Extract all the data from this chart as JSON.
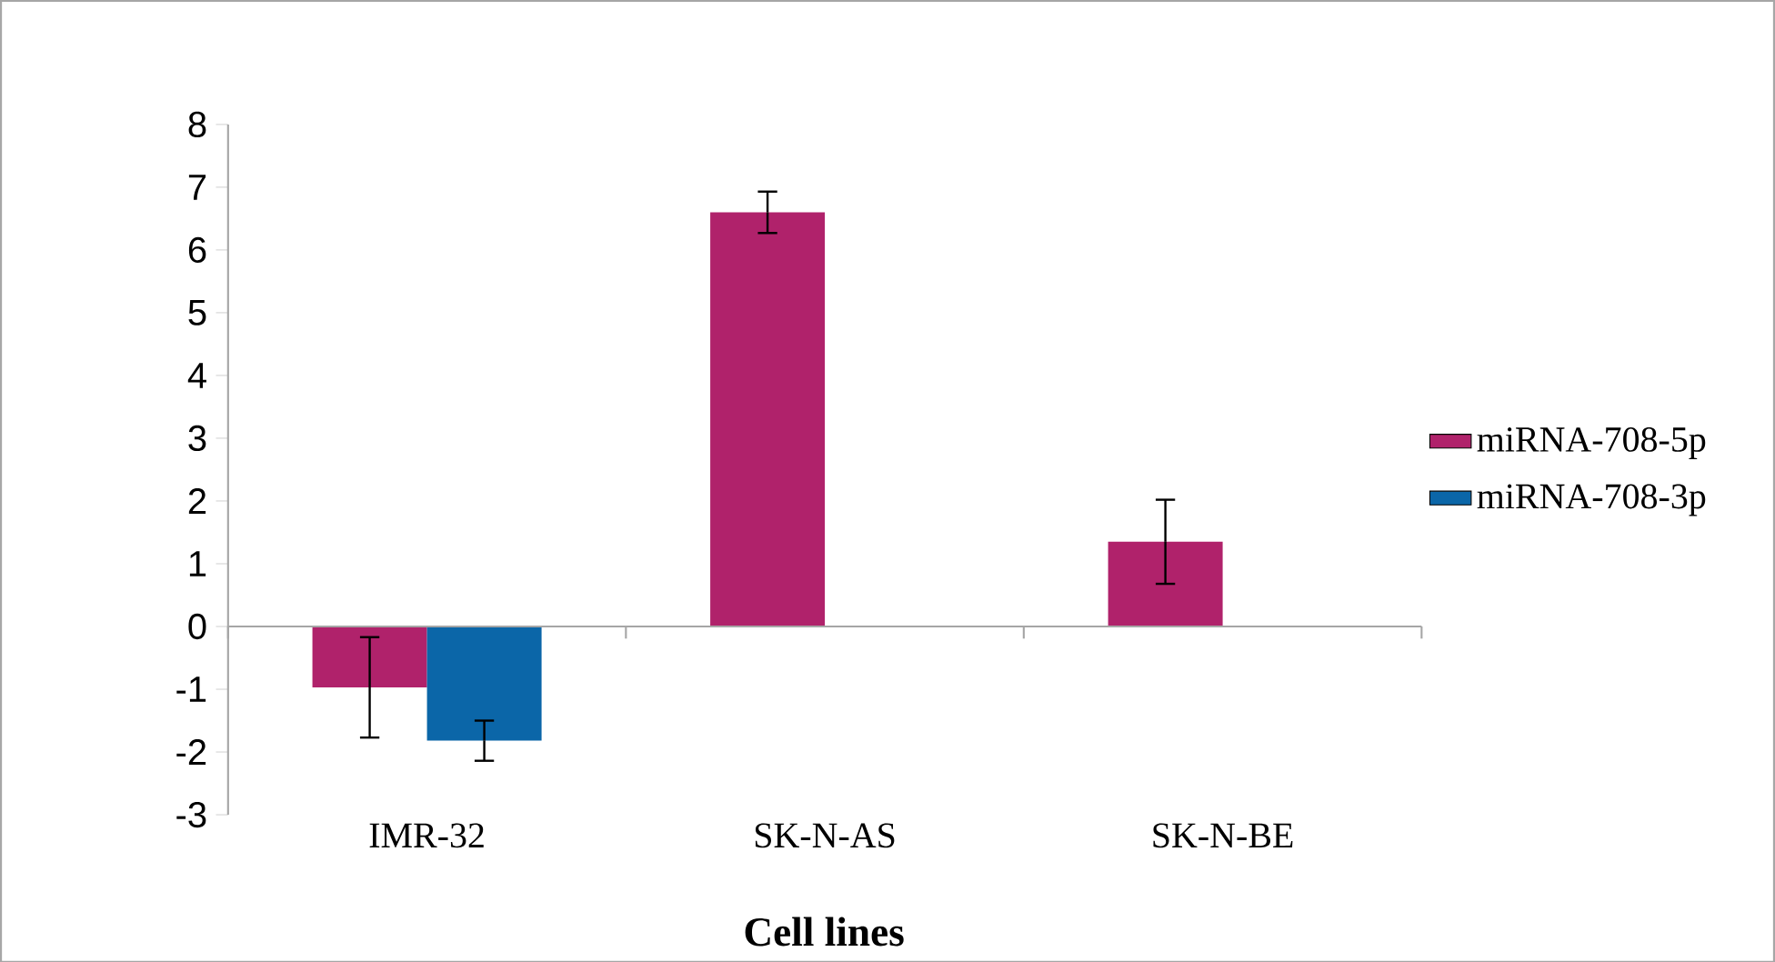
{
  "chart_data": {
    "type": "bar",
    "xlabel": "Cell lines",
    "categories": [
      "IMR-32",
      "SK-N-AS",
      "SK-N-BE"
    ],
    "series": [
      {
        "name": "miRNA-708-5p",
        "color": "#b0226b",
        "values": [
          -0.97,
          6.6,
          1.35
        ],
        "errors": [
          0.8,
          0.33,
          0.67
        ]
      },
      {
        "name": "miRNA-708-3p",
        "color": "#0b66a8",
        "values": [
          -1.82,
          null,
          null
        ],
        "errors": [
          0.32,
          null,
          null
        ]
      }
    ],
    "ylim": [
      -3,
      8
    ],
    "yticks": [
      -3,
      -2,
      -1,
      0,
      1,
      2,
      3,
      4,
      5,
      6,
      7,
      8
    ],
    "legend": "right"
  }
}
